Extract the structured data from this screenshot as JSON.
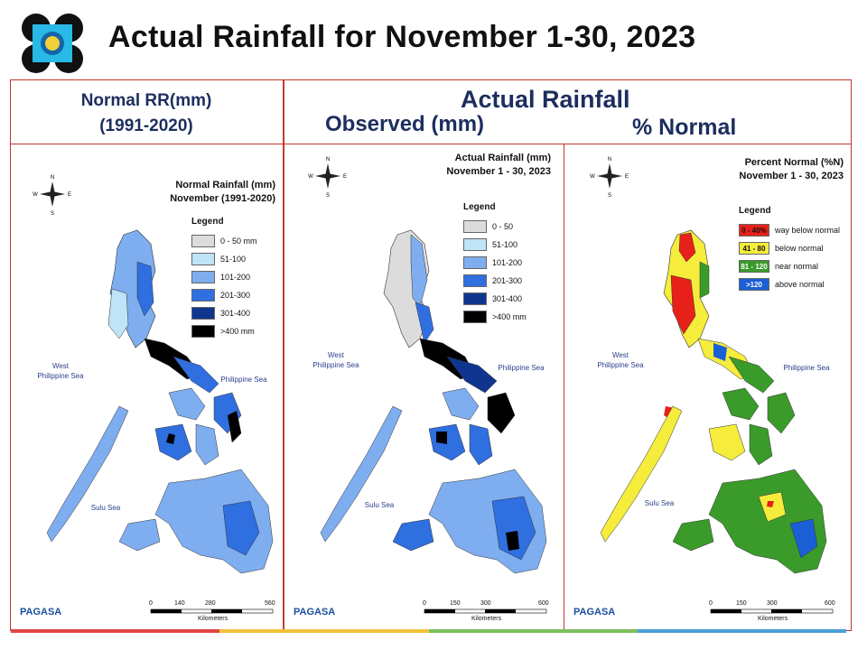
{
  "title": "Actual Rainfall for November 1-30, 2023",
  "headers": {
    "left_line1": "Normal RR(mm)",
    "left_line2": "(1991-2020)",
    "actual": "Actual Rainfall",
    "observed": "Observed (mm)",
    "percent": "% Normal"
  },
  "panels": [
    {
      "id": "normal",
      "title_line1": "Normal Rainfall (mm)",
      "title_line2": "November (1991-2020)",
      "legend_title": "Legend",
      "legend": [
        {
          "label": "0 - 50 mm",
          "color": "#dcdcdc"
        },
        {
          "label": "51-100",
          "color": "#bfe3f7"
        },
        {
          "label": "101-200",
          "color": "#7eaef0"
        },
        {
          "label": "201-300",
          "color": "#2f6fe0"
        },
        {
          "label": "301-400",
          "color": "#10358f"
        },
        {
          "label": ">400 mm",
          "color": "#000000"
        }
      ],
      "seas": [
        "West Philippine Sea",
        "Philippine Sea",
        "Sulu Sea"
      ],
      "scale_ticks": [
        "0",
        "140",
        "280",
        "560"
      ],
      "scale_unit": "Kilometers"
    },
    {
      "id": "observed",
      "title_line1": "Actual Rainfall (mm)",
      "title_line2": "November 1 - 30, 2023",
      "legend_title": "Legend",
      "legend": [
        {
          "label": "0 - 50",
          "color": "#dcdcdc"
        },
        {
          "label": "51-100",
          "color": "#bfe3f7"
        },
        {
          "label": "101-200",
          "color": "#7eaef0"
        },
        {
          "label": "201-300",
          "color": "#2f6fe0"
        },
        {
          "label": "301-400",
          "color": "#10358f"
        },
        {
          "label": ">400 mm",
          "color": "#000000"
        }
      ],
      "seas": [
        "West Philippine Sea",
        "Philippine Sea",
        "Sulu Sea"
      ],
      "scale_ticks": [
        "0",
        "150",
        "300",
        "600"
      ],
      "scale_unit": "Kilometers"
    },
    {
      "id": "percent",
      "title_line1": "Percent Normal (%N)",
      "title_line2": "November 1 - 30, 2023",
      "legend_title": "Legend",
      "legend": [
        {
          "swatch": "0 - 40%",
          "label": "way below normal",
          "color": "#e8201a"
        },
        {
          "swatch": "41 - 80",
          "label": "below normal",
          "color": "#f5ec3b"
        },
        {
          "swatch": "81 - 120",
          "label": "near normal",
          "color": "#3a9b2a"
        },
        {
          "swatch": ">120",
          "label": "above normal",
          "color": "#1b5fd6"
        }
      ],
      "seas": [
        "West Philippine Sea",
        "Philippine Sea",
        "Sulu Sea"
      ],
      "scale_ticks": [
        "0",
        "150",
        "300",
        "600"
      ],
      "scale_unit": "Kilometers"
    }
  ],
  "footer": {
    "brand": "PAGASA",
    "stripe_colors": [
      "#e04545",
      "#f0c23a",
      "#7bbf5a",
      "#4aa0d8"
    ]
  }
}
